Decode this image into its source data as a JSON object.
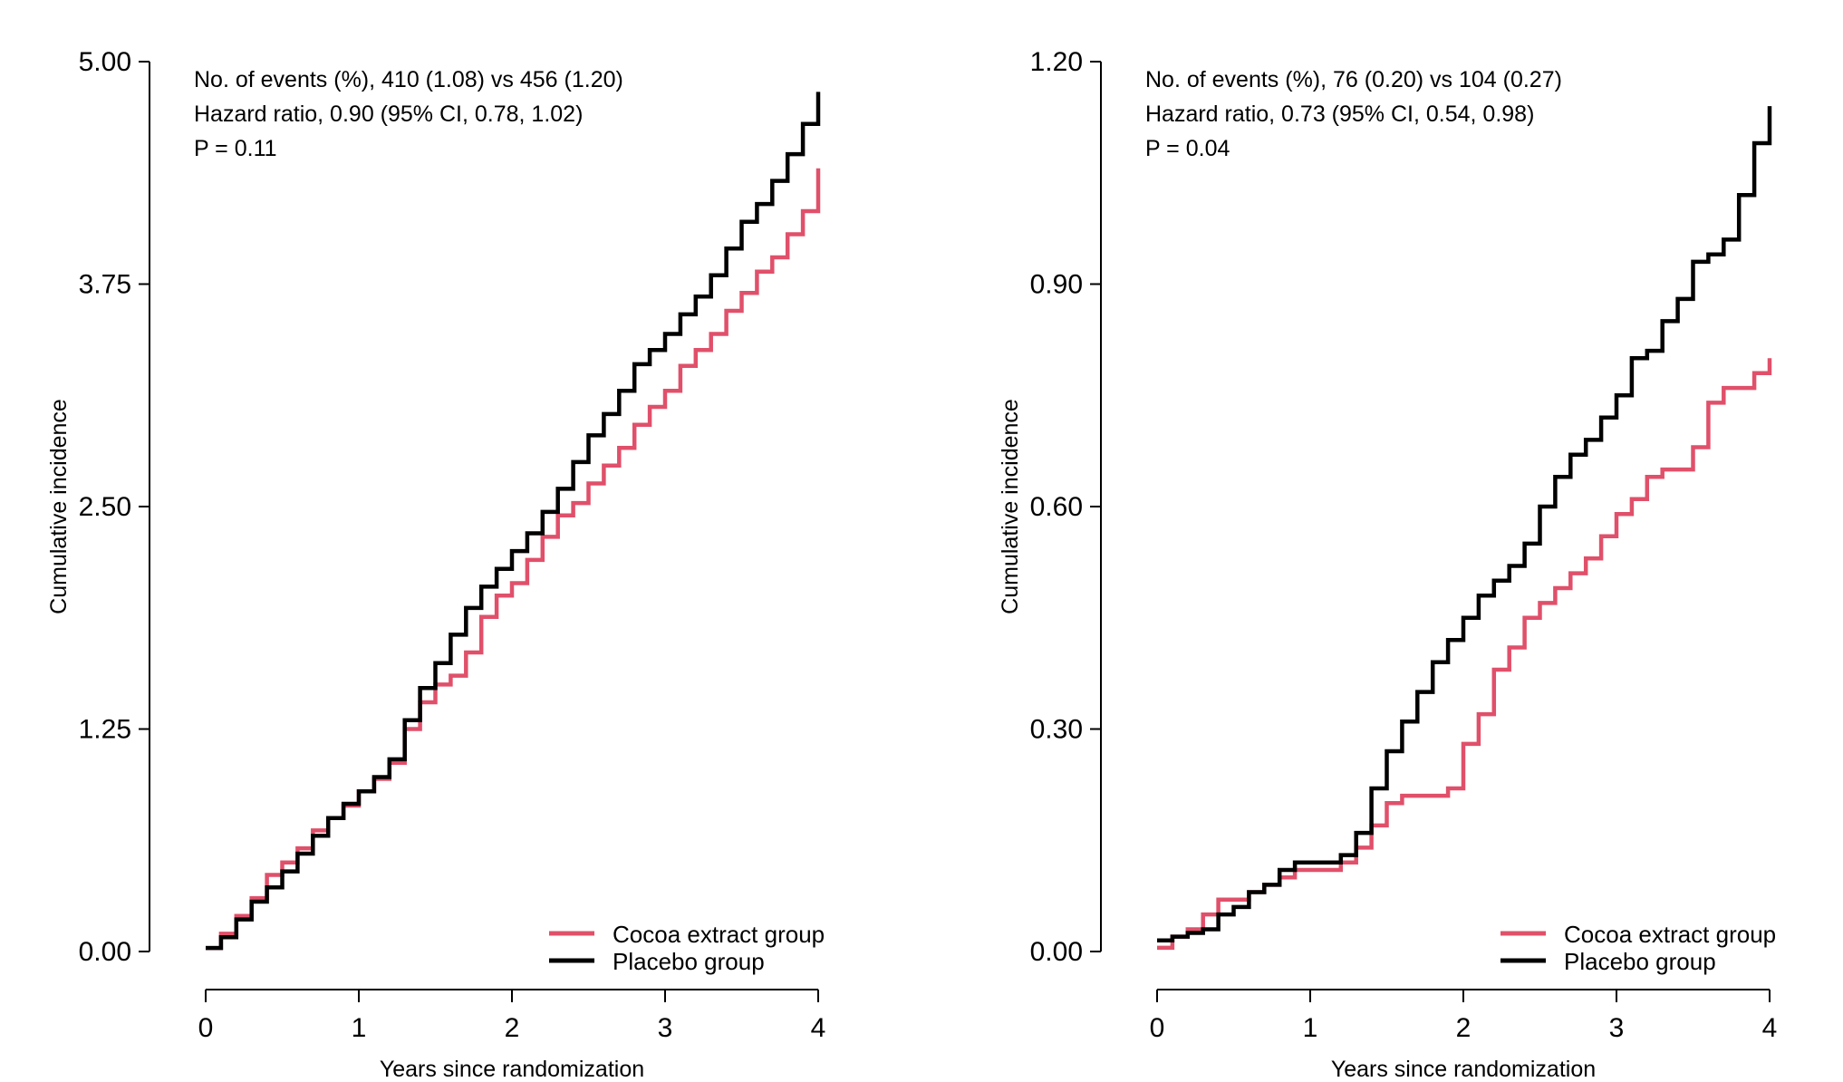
{
  "chart_data": [
    {
      "type": "line",
      "xlabel": "Years since randomization",
      "ylabel": "Cumulative incidence",
      "xlim": [
        0,
        4
      ],
      "ylim": [
        0,
        5
      ],
      "x_ticks": [
        "0",
        "1",
        "2",
        "3",
        "4"
      ],
      "y_ticks": [
        "0.00",
        "1.25",
        "2.50",
        "3.75",
        "5.00"
      ],
      "annotations": [
        "No. of events (%), 410 (1.08) vs 456 (1.20)",
        "Hazard ratio, 0.90 (95% CI, 0.78, 1.02)",
        "P = 0.11"
      ],
      "legend_position": "bottom-right",
      "series": [
        {
          "name": "Cocoa extract group",
          "color": "#e0506a",
          "x": [
            0,
            0.1,
            0.2,
            0.3,
            0.4,
            0.5,
            0.6,
            0.7,
            0.8,
            0.9,
            1.0,
            1.1,
            1.2,
            1.3,
            1.4,
            1.5,
            1.6,
            1.7,
            1.8,
            1.9,
            2.0,
            2.1,
            2.2,
            2.3,
            2.4,
            2.5,
            2.6,
            2.7,
            2.8,
            2.9,
            3.0,
            3.1,
            3.2,
            3.3,
            3.4,
            3.5,
            3.6,
            3.7,
            3.8,
            3.9,
            4.0
          ],
          "y": [
            0.02,
            0.1,
            0.2,
            0.3,
            0.43,
            0.5,
            0.58,
            0.68,
            0.75,
            0.82,
            0.9,
            0.97,
            1.06,
            1.25,
            1.4,
            1.5,
            1.55,
            1.68,
            1.88,
            2.0,
            2.07,
            2.2,
            2.33,
            2.45,
            2.52,
            2.63,
            2.73,
            2.83,
            2.96,
            3.06,
            3.15,
            3.29,
            3.38,
            3.47,
            3.6,
            3.7,
            3.82,
            3.9,
            4.03,
            4.16,
            4.4
          ]
        },
        {
          "name": "Placebo group",
          "color": "#000000",
          "x": [
            0,
            0.1,
            0.2,
            0.3,
            0.4,
            0.5,
            0.6,
            0.7,
            0.8,
            0.9,
            1.0,
            1.1,
            1.2,
            1.3,
            1.4,
            1.5,
            1.6,
            1.7,
            1.8,
            1.9,
            2.0,
            2.1,
            2.2,
            2.3,
            2.4,
            2.5,
            2.6,
            2.7,
            2.8,
            2.9,
            3.0,
            3.1,
            3.2,
            3.3,
            3.4,
            3.5,
            3.6,
            3.7,
            3.8,
            3.9,
            4.0
          ],
          "y": [
            0.02,
            0.08,
            0.18,
            0.28,
            0.36,
            0.45,
            0.55,
            0.65,
            0.75,
            0.83,
            0.9,
            0.98,
            1.08,
            1.3,
            1.48,
            1.62,
            1.78,
            1.93,
            2.05,
            2.15,
            2.25,
            2.35,
            2.47,
            2.6,
            2.75,
            2.9,
            3.02,
            3.15,
            3.3,
            3.38,
            3.47,
            3.58,
            3.68,
            3.8,
            3.95,
            4.1,
            4.2,
            4.33,
            4.48,
            4.65,
            4.83
          ]
        }
      ]
    },
    {
      "type": "line",
      "xlabel": "Years since randomization",
      "ylabel": "Cumulative incidence",
      "xlim": [
        0,
        4
      ],
      "ylim": [
        0,
        1.2
      ],
      "x_ticks": [
        "0",
        "1",
        "2",
        "3",
        "4"
      ],
      "y_ticks": [
        "0.00",
        "0.30",
        "0.60",
        "0.90",
        "1.20"
      ],
      "annotations": [
        "No. of events (%), 76 (0.20) vs 104 (0.27)",
        "Hazard ratio, 0.73 (95% CI, 0.54, 0.98)",
        "P = 0.04"
      ],
      "legend_position": "bottom-right",
      "series": [
        {
          "name": "Cocoa extract group",
          "color": "#e0506a",
          "x": [
            0,
            0.1,
            0.2,
            0.3,
            0.4,
            0.5,
            0.6,
            0.7,
            0.8,
            0.9,
            1.0,
            1.1,
            1.2,
            1.3,
            1.4,
            1.5,
            1.6,
            1.7,
            1.8,
            1.9,
            2.0,
            2.1,
            2.2,
            2.3,
            2.4,
            2.5,
            2.6,
            2.7,
            2.8,
            2.9,
            3.0,
            3.1,
            3.2,
            3.3,
            3.4,
            3.5,
            3.6,
            3.7,
            3.8,
            3.9,
            4.0
          ],
          "y": [
            0.005,
            0.02,
            0.03,
            0.05,
            0.07,
            0.07,
            0.08,
            0.09,
            0.1,
            0.11,
            0.11,
            0.11,
            0.12,
            0.14,
            0.17,
            0.2,
            0.21,
            0.21,
            0.21,
            0.22,
            0.28,
            0.32,
            0.38,
            0.41,
            0.45,
            0.47,
            0.49,
            0.51,
            0.53,
            0.56,
            0.59,
            0.61,
            0.64,
            0.65,
            0.65,
            0.68,
            0.74,
            0.76,
            0.76,
            0.78,
            0.8
          ]
        },
        {
          "name": "Placebo group",
          "color": "#000000",
          "x": [
            0,
            0.1,
            0.2,
            0.3,
            0.4,
            0.5,
            0.6,
            0.7,
            0.8,
            0.9,
            1.0,
            1.1,
            1.2,
            1.3,
            1.4,
            1.5,
            1.6,
            1.7,
            1.8,
            1.9,
            2.0,
            2.1,
            2.2,
            2.3,
            2.4,
            2.5,
            2.6,
            2.7,
            2.8,
            2.9,
            3.0,
            3.1,
            3.2,
            3.3,
            3.4,
            3.5,
            3.6,
            3.7,
            3.8,
            3.9,
            4.0
          ],
          "y": [
            0.015,
            0.02,
            0.025,
            0.03,
            0.05,
            0.06,
            0.08,
            0.09,
            0.11,
            0.12,
            0.12,
            0.12,
            0.13,
            0.16,
            0.22,
            0.27,
            0.31,
            0.35,
            0.39,
            0.42,
            0.45,
            0.48,
            0.5,
            0.52,
            0.55,
            0.6,
            0.64,
            0.67,
            0.69,
            0.72,
            0.75,
            0.8,
            0.81,
            0.85,
            0.88,
            0.93,
            0.94,
            0.96,
            1.02,
            1.09,
            1.14
          ]
        }
      ]
    }
  ],
  "legend_line_color_cocoa": "#e0506a",
  "legend_line_color_placebo": "#000000"
}
